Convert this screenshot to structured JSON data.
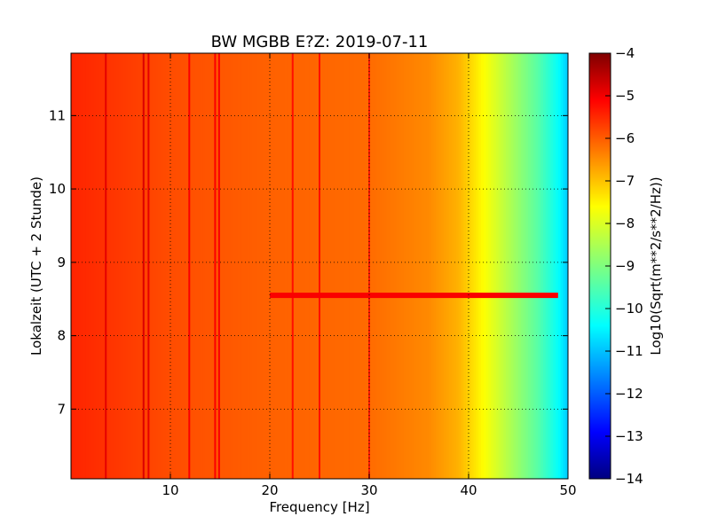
{
  "chart_data": {
    "type": "heatmap",
    "title": "BW MGBB E?Z: 2019-07-11",
    "xlabel": "Frequency [Hz]",
    "ylabel": "Lokalzeit (UTC + 2 Stunde)",
    "colorbar_label": "Log10(Sqrt(m**2/s**2/Hz))",
    "colormap": "jet",
    "xlim": [
      0,
      50
    ],
    "ylim": [
      11.85,
      6.05
    ],
    "clim": [
      -14,
      -4
    ],
    "x_ticks": [
      10,
      20,
      30,
      40,
      50
    ],
    "x_tick_labels": [
      "10",
      "20",
      "30",
      "40",
      "50"
    ],
    "y_ticks": [
      7,
      8,
      9,
      10,
      11
    ],
    "y_tick_labels": [
      "7",
      "8",
      "9",
      "10",
      "11"
    ],
    "colorbar_ticks": [
      -4,
      -5,
      -6,
      -7,
      -8,
      -9,
      -10,
      -11,
      -12,
      -13,
      -14
    ],
    "colorbar_tick_labels": [
      "−4",
      "−5",
      "−6",
      "−7",
      "−8",
      "−9",
      "−10",
      "−11",
      "−12",
      "−13",
      "−14"
    ],
    "grid": true,
    "frequency_profile": {
      "x": [
        0,
        5,
        10,
        20,
        30,
        36,
        39,
        41,
        43,
        45,
        47,
        49,
        50
      ],
      "values": [
        -5.6,
        -5.8,
        -6.0,
        -6.2,
        -6.3,
        -6.6,
        -7.0,
        -7.6,
        -8.2,
        -8.8,
        -9.4,
        -10.2,
        -10.8
      ]
    },
    "features": [
      {
        "kind": "vertical_line",
        "x": 3.5,
        "value": -5.0
      },
      {
        "kind": "vertical_line",
        "x": 7.3,
        "value": -4.9
      },
      {
        "kind": "vertical_line",
        "x": 7.8,
        "value": -5.0
      },
      {
        "kind": "vertical_line",
        "x": 11.9,
        "value": -5.2
      },
      {
        "kind": "vertical_line",
        "x": 14.5,
        "value": -5.2
      },
      {
        "kind": "vertical_line",
        "x": 14.9,
        "value": -5.2
      },
      {
        "kind": "vertical_line",
        "x": 22.3,
        "value": -5.4
      },
      {
        "kind": "vertical_line",
        "x": 25.0,
        "value": -5.4
      },
      {
        "kind": "vertical_line",
        "x": 30.0,
        "value": -5.5
      },
      {
        "kind": "horizontal_band",
        "y": 8.55,
        "x_range": [
          20,
          49
        ],
        "value": -5.2
      }
    ]
  }
}
